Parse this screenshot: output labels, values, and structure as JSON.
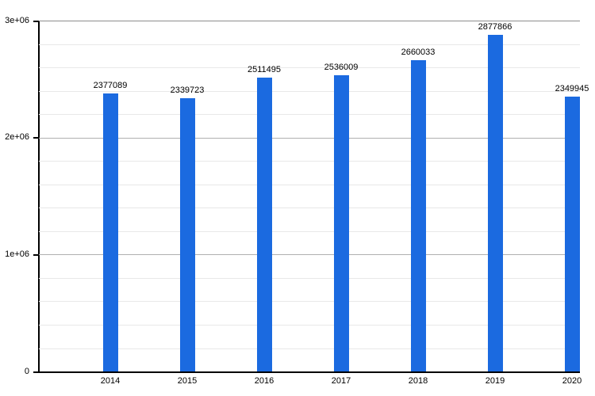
{
  "chart_data": {
    "type": "bar",
    "title": "",
    "xlabel": "",
    "ylabel": "",
    "categories": [
      "2014",
      "2015",
      "2016",
      "2017",
      "2018",
      "2019",
      "2020"
    ],
    "values": [
      2377089,
      2339723,
      2511495,
      2536009,
      2660033,
      2877866,
      2349945
    ],
    "value_labels": [
      "2377089",
      "2339723",
      "2511495",
      "2536009",
      "2660033",
      "2877866",
      "2349945"
    ],
    "ylim": [
      0,
      3000000
    ],
    "y_major_step": 1000000,
    "y_minor_step": 200000,
    "y_tick_values": [
      0,
      1000000,
      2000000,
      3000000
    ],
    "y_tick_labels": [
      "0",
      "1e+06",
      "2e+06",
      "3e+06"
    ],
    "grid": true,
    "legend": false,
    "colors": {
      "bar": "#1b6ae0",
      "major_grid": "#b0b0b0",
      "minor_grid": "#e8e8e8",
      "top_grid": "#8c8c8c",
      "axis": "#000000",
      "label": "#000000"
    }
  }
}
